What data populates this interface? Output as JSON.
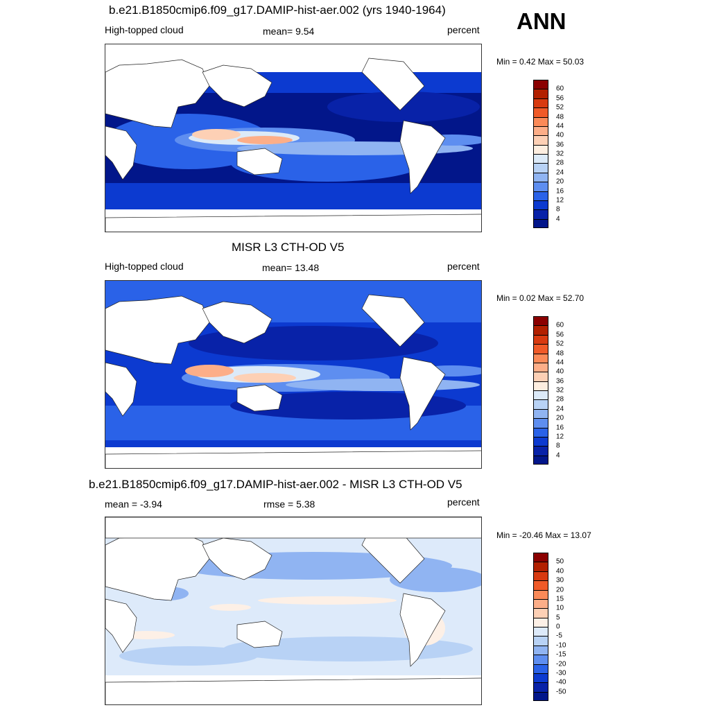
{
  "season": "ANN",
  "panels": [
    {
      "title": "b.e21.B1850cmip6.f09_g17.DAMIP-hist-aer.002 (yrs 1940-1964)",
      "left_text": "High-topped cloud",
      "center_text": "mean=   9.54",
      "right_text": "percent",
      "minmax": "Min =   0.42 Max =  50.03",
      "colorbar": {
        "labels": [
          "60",
          "56",
          "52",
          "48",
          "44",
          "40",
          "36",
          "32",
          "28",
          "24",
          "20",
          "16",
          "12",
          "8",
          "4"
        ],
        "colors": [
          "#8b0000",
          "#b22000",
          "#d83a10",
          "#f05a28",
          "#fb8a58",
          "#fdae88",
          "#fdd0b5",
          "#fdeee0",
          "#dceaf8",
          "#b8d2f5",
          "#90b4f2",
          "#5e8ef0",
          "#2a62e8",
          "#0c3ad0",
          "#0822a8",
          "#02168a"
        ]
      }
    },
    {
      "title": "MISR L3 CTH-OD V5",
      "left_text": "High-topped cloud",
      "center_text": "mean=  13.48",
      "right_text": "percent",
      "minmax": "Min =   0.02 Max =  52.70",
      "colorbar": {
        "labels": [
          "60",
          "56",
          "52",
          "48",
          "44",
          "40",
          "36",
          "32",
          "28",
          "24",
          "20",
          "16",
          "12",
          "8",
          "4"
        ],
        "colors": [
          "#8b0000",
          "#b22000",
          "#d83a10",
          "#f05a28",
          "#fb8a58",
          "#fdae88",
          "#fdd0b5",
          "#fdeee0",
          "#dceaf8",
          "#b8d2f5",
          "#90b4f2",
          "#5e8ef0",
          "#2a62e8",
          "#0c3ad0",
          "#0822a8",
          "#02168a"
        ]
      }
    },
    {
      "title": "b.e21.B1850cmip6.f09_g17.DAMIP-hist-aer.002 - MISR L3 CTH-OD V5",
      "left_text": "mean =  -3.94",
      "center_text": "rmse =   5.38",
      "right_text": "percent",
      "minmax": "Min = -20.46 Max =  13.07",
      "colorbar": {
        "labels": [
          "50",
          "40",
          "30",
          "20",
          "15",
          "10",
          "5",
          "0",
          "-5",
          "-10",
          "-15",
          "-20",
          "-30",
          "-40",
          "-50"
        ],
        "colors": [
          "#8b0000",
          "#b22000",
          "#d83a10",
          "#f05a28",
          "#fb8a58",
          "#fdae88",
          "#fdd0b5",
          "#fdf0e6",
          "#ddeafa",
          "#b8d2f5",
          "#90b4f2",
          "#5e8ef0",
          "#2a62e8",
          "#0c3ad0",
          "#0822a8",
          "#02168a"
        ]
      }
    }
  ]
}
